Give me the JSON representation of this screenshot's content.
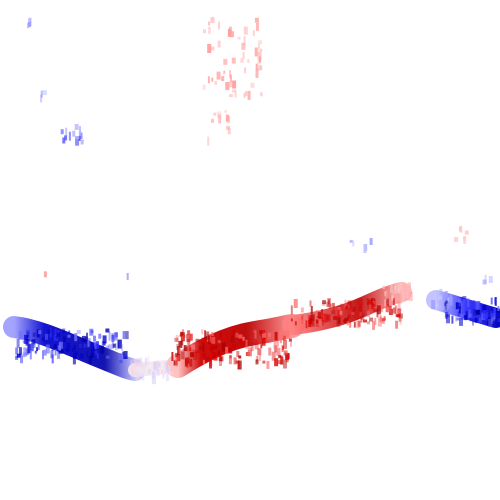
{
  "image": {
    "description_kind": "pixelated-signal-trace",
    "colors": {
      "background": "#ffffff",
      "positive": "#cc0000",
      "positive_light": "#ff9c9c",
      "negative": "#0000cc",
      "negative_light": "#9c9cff",
      "neutral": "#f2e6ea"
    }
  }
}
